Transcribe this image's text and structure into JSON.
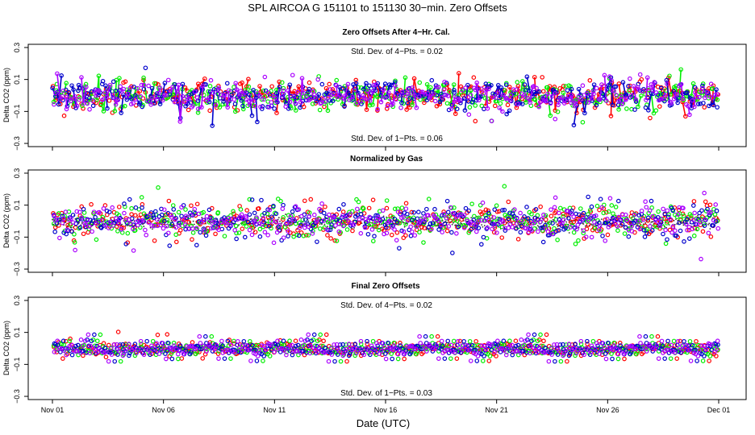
{
  "chart_data": {
    "type": "scatter",
    "title": "SPL   AIRCOA G   151101 to 151130   30−min. Zero Offsets",
    "xlabel": "Date (UTC)",
    "x_ticks": [
      "Nov 01",
      "Nov 06",
      "Nov 11",
      "Nov 16",
      "Nov 21",
      "Nov 26",
      "Dec 01"
    ],
    "x_tick_days": [
      0,
      5,
      10,
      15,
      20,
      25,
      30
    ],
    "xlim": [
      0,
      30
    ],
    "series_colors": {
      "gas1": "#ff0000",
      "gas2": "#00ee00",
      "gas3": "#0000cc",
      "gas4": "#aa00ff",
      "mean": "#333333"
    },
    "panels": [
      {
        "title": "Zero Offsets After 4−Hr. Cal.",
        "ylabel": "Delta CO2 (ppm)",
        "ylim": [
          -0.32,
          0.32
        ],
        "y_ticks": [
          -0.3,
          -0.1,
          0.1,
          0.3
        ],
        "y_tick_labels": [
          "−0.3",
          "−0.1",
          "0.1",
          "0.3"
        ],
        "annotation_top": "Std. Dev. of 4−Pts. =  0.02",
        "annotation_bottom": "Std. Dev. of 1−Pts. =  0.06",
        "noise_sd": 0.045,
        "mean_line": false,
        "marks": "lines+points"
      },
      {
        "title": "Normalized by Gas",
        "ylabel": "Delta CO2 (ppm)",
        "ylim": [
          -0.32,
          0.32
        ],
        "y_ticks": [
          -0.3,
          -0.1,
          0.1,
          0.3
        ],
        "y_tick_labels": [
          "−0.3",
          "−0.1",
          "0.1",
          "0.3"
        ],
        "annotation_top": "",
        "annotation_bottom": "",
        "noise_sd": 0.05,
        "mean_line": true,
        "marks": "points"
      },
      {
        "title": "Final Zero Offsets",
        "ylabel": "Delta CO2 (ppm)",
        "ylim": [
          -0.32,
          0.32
        ],
        "y_ticks": [
          -0.3,
          -0.1,
          0.1,
          0.3
        ],
        "y_tick_labels": [
          "−0.3",
          "−0.1",
          "0.1",
          "0.3"
        ],
        "annotation_top": "Std. Dev. of 4−Pts. =  0.02",
        "annotation_bottom": "Std. Dev. of 1−Pts. =  0.03",
        "noise_sd": 0.028,
        "mean_line": false,
        "marks": "points"
      }
    ]
  }
}
